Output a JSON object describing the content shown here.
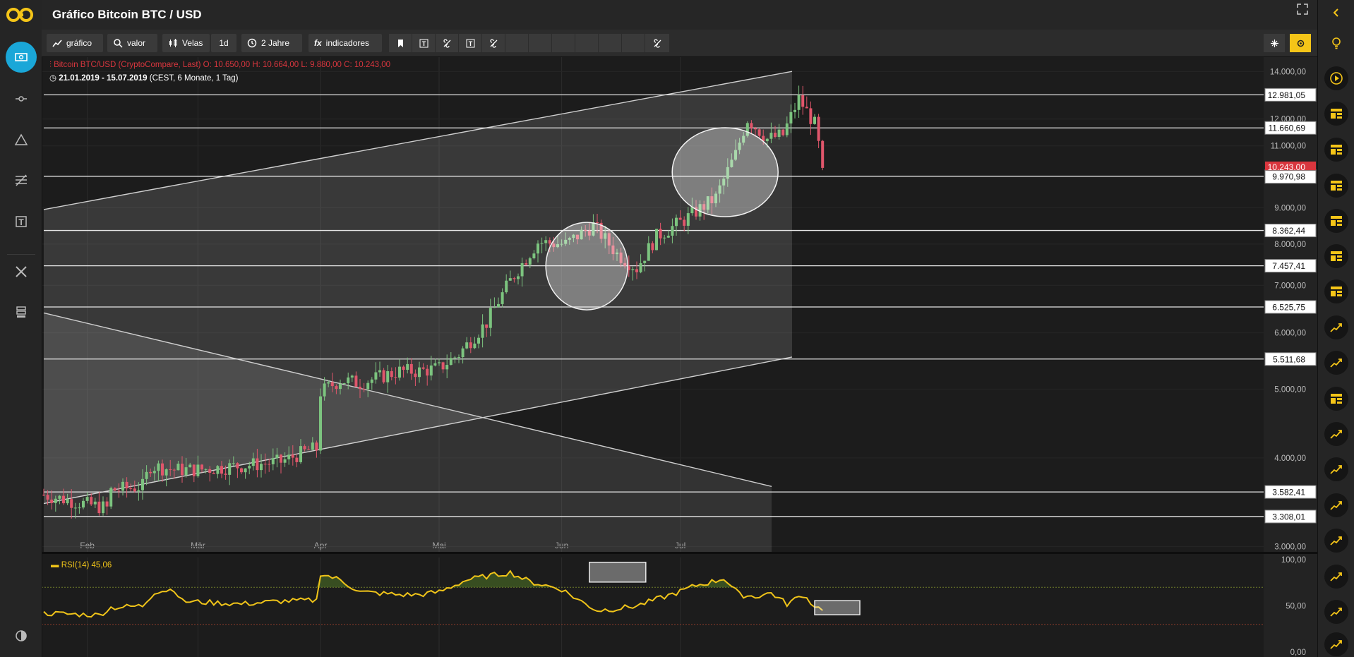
{
  "header": {
    "title": "Gráfico Bitcoin BTC / USD"
  },
  "toolbar": {
    "chart_label": "gráfico",
    "value_label": "valor",
    "candles_label": "Velas",
    "interval_label": "1d",
    "range_label": "2 Jahre",
    "indicators_label": "indicadores"
  },
  "legend": {
    "instrument": "Bitcoin BTC/USD (CryptoCompare, Last)",
    "open": "O: 10.650,00",
    "high": "H: 10.664,00",
    "low": "L: 9.880,00",
    "close": "C: 10.243,00",
    "date_range": "21.01.2019 - 15.07.2019",
    "period_info": "(CEST, 6 Monate, 1 Tag)"
  },
  "rsi": {
    "label": "RSI(14)",
    "value": "45,06"
  },
  "icons": {
    "left": [
      "cash-icon",
      "slider-icon",
      "triangle-icon",
      "drawing-tools-icon",
      "text-icon",
      "tools-icon",
      "layers-icon",
      "contrast-icon"
    ],
    "right": [
      "collapse-arrow-icon",
      "lightbulb-icon",
      "play-icon",
      "news-icon",
      "news-icon",
      "news-icon",
      "news-icon",
      "news-icon",
      "news-icon",
      "trend-icon",
      "trend-icon",
      "news-icon",
      "trend-icon",
      "trend-icon",
      "trend-icon",
      "trend-icon",
      "trend-icon",
      "trend-icon",
      "trend-icon"
    ]
  },
  "colors": {
    "up": "#7cc47f",
    "down": "#e0566b",
    "rsi": "#f0c419",
    "accent": "#f5c518",
    "current_price": "#d9363e"
  },
  "chart_data": {
    "type": "candlestick",
    "title": "Bitcoin BTC/USD",
    "x_tick_labels": [
      "Feb",
      "Mär",
      "Apr",
      "Mai",
      "Jun",
      "Jul"
    ],
    "x_ticks_days": [
      11,
      39,
      70,
      100,
      131,
      161
    ],
    "y_scale": "log",
    "y_tick_labels": [
      "14.000,00",
      "12.000,00",
      "11.000,00",
      "9.000,00",
      "8.000,00",
      "7.000,00",
      "6.000,00",
      "5.000,00",
      "4.000,00",
      "3.000,00"
    ],
    "y_ticks": [
      14000,
      12000,
      11000,
      9000,
      8000,
      7000,
      6000,
      5000,
      4000,
      3000
    ],
    "ylim": [
      2950,
      14700
    ],
    "current_price": {
      "value": 10243,
      "label": "10.243,00"
    },
    "horizontal_levels": [
      {
        "value": 12981.05,
        "label": "12.981,05"
      },
      {
        "value": 11660.69,
        "label": "11.660,69"
      },
      {
        "value": 9970.98,
        "label": "9.970,98"
      },
      {
        "value": 8362.44,
        "label": "8.362,44"
      },
      {
        "value": 7457.41,
        "label": "7.457,41"
      },
      {
        "value": 6525.75,
        "label": "6.525,75"
      },
      {
        "value": 5511.68,
        "label": "5.511,68"
      },
      {
        "value": 3582.41,
        "label": "3.582,41"
      },
      {
        "value": 3308.01,
        "label": "3.308,01"
      }
    ],
    "channel": {
      "upper": [
        [
          0,
          8950
        ],
        [
          180,
          13700
        ]
      ],
      "lower": [
        [
          0,
          3450
        ],
        [
          180,
          5420
        ]
      ]
    },
    "descending_line": [
      [
        0,
        6400
      ],
      [
        175,
        3750
      ]
    ],
    "circles": [
      {
        "day": 137,
        "price": 7450
      },
      {
        "day": 172,
        "price": 10100
      }
    ],
    "close_keypoints": [
      [
        0,
        3550
      ],
      [
        10,
        3450
      ],
      [
        16,
        3400
      ],
      [
        17,
        3600
      ],
      [
        25,
        3650
      ],
      [
        27,
        3900
      ],
      [
        33,
        3850
      ],
      [
        39,
        3850
      ],
      [
        50,
        3900
      ],
      [
        60,
        3950
      ],
      [
        67,
        4100
      ],
      [
        69,
        4120
      ],
      [
        70,
        4950
      ],
      [
        75,
        5150
      ],
      [
        80,
        5100
      ],
      [
        90,
        5300
      ],
      [
        95,
        5300
      ],
      [
        100,
        5350
      ],
      [
        105,
        5600
      ],
      [
        112,
        6200
      ],
      [
        118,
        7100
      ],
      [
        125,
        8050
      ],
      [
        132,
        8000
      ],
      [
        139,
        8500
      ],
      [
        145,
        7750
      ],
      [
        150,
        7400
      ],
      [
        155,
        8200
      ],
      [
        162,
        8650
      ],
      [
        170,
        9300
      ],
      [
        175,
        10700
      ],
      [
        178,
        12000
      ],
      [
        183,
        11250
      ],
      [
        187,
        11400
      ],
      [
        191,
        12800
      ],
      [
        195,
        11800
      ],
      [
        197,
        10243
      ]
    ],
    "rsi": {
      "ylim": [
        0,
        100
      ],
      "y_tick_labels": [
        "100,00",
        "50,00",
        "0,00"
      ],
      "upper_band": 70,
      "lower_band": 30,
      "last": 45.06,
      "keypoints": [
        [
          0,
          42
        ],
        [
          14,
          40
        ],
        [
          17,
          48
        ],
        [
          25,
          50
        ],
        [
          28,
          65
        ],
        [
          33,
          68
        ],
        [
          35,
          55
        ],
        [
          50,
          52
        ],
        [
          60,
          55
        ],
        [
          69,
          56
        ],
        [
          70,
          85
        ],
        [
          75,
          78
        ],
        [
          80,
          65
        ],
        [
          90,
          62
        ],
        [
          95,
          62
        ],
        [
          100,
          65
        ],
        [
          107,
          78
        ],
        [
          112,
          82
        ],
        [
          118,
          86
        ],
        [
          123,
          76
        ],
        [
          131,
          68
        ],
        [
          135,
          57
        ],
        [
          140,
          45
        ],
        [
          145,
          47
        ],
        [
          150,
          50
        ],
        [
          155,
          57
        ],
        [
          160,
          64
        ],
        [
          165,
          72
        ],
        [
          170,
          77
        ],
        [
          172,
          80
        ],
        [
          176,
          62
        ],
        [
          180,
          60
        ],
        [
          184,
          64
        ],
        [
          188,
          52
        ],
        [
          192,
          62
        ],
        [
          195,
          50
        ],
        [
          197,
          45
        ]
      ]
    }
  }
}
